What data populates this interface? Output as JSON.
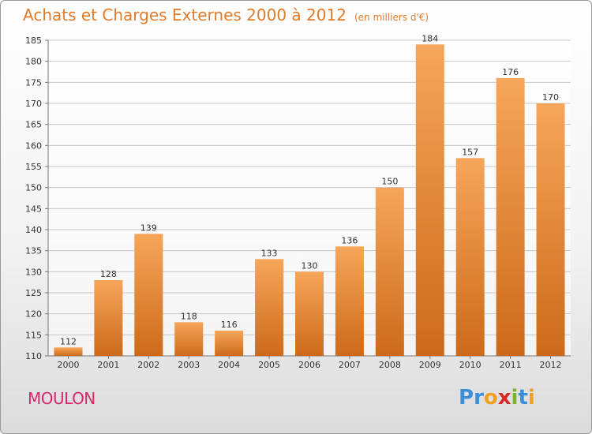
{
  "header": {
    "title": "Achats et Charges Externes 2000 à 2012",
    "unit": "(en milliers d'€)"
  },
  "commune": "MOULON",
  "logo": {
    "text": "Proxiti",
    "letters": [
      {
        "char": "P",
        "color": "#3a8fd8"
      },
      {
        "char": "r",
        "color": "#3a8fd8"
      },
      {
        "char": "o",
        "color": "#f0a020"
      },
      {
        "char": "x",
        "color": "#d62a2a"
      },
      {
        "char": "i",
        "color": "#7ab52a"
      },
      {
        "char": "t",
        "color": "#3a8fd8"
      },
      {
        "char": "i",
        "color": "#f0a020"
      }
    ]
  },
  "colors": {
    "title": "#e07b2a",
    "commune": "#d6286a",
    "bar_light": "#f6a65a",
    "bar_dark": "#cc6a1a",
    "grid": "#c8c8c8"
  },
  "chart_data": {
    "type": "bar",
    "categories": [
      "2000",
      "2001",
      "2002",
      "2003",
      "2004",
      "2005",
      "2006",
      "2007",
      "2008",
      "2009",
      "2010",
      "2011",
      "2012"
    ],
    "values": [
      112,
      128,
      139,
      118,
      116,
      133,
      130,
      136,
      150,
      184,
      157,
      176,
      170
    ],
    "ylim": [
      110,
      185
    ],
    "yticks": [
      110,
      115,
      120,
      125,
      130,
      135,
      140,
      145,
      150,
      155,
      160,
      165,
      170,
      175,
      180,
      185
    ],
    "grid": true,
    "data_labels": true
  }
}
